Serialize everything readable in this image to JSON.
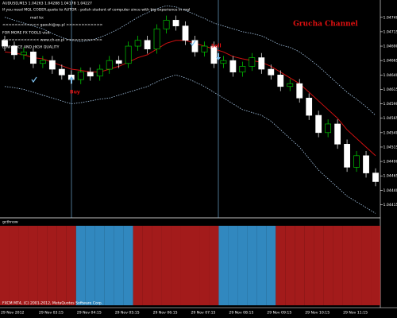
{
  "chart_data": {
    "type": "candlestick",
    "header": "AUDUSD,M15 1.04263 1.04288 1.04178 1.04227",
    "notes": [
      "If you need MQL CODER,quote to AUTOR - polish student of computer since with big experience in mql",
      "mail to:",
      "<<<<<<<<<<<< gaoshi@op.pl >>>>>>>>>>>>",
      "FOR MORE FX TOOLS visit",
      "<<<<<<<<<<<< www.ch-ex.pl >>>>>>>>>>>>",
      "LOW PRICE AND HIGH QUALITY"
    ],
    "title": "Grucha Channel",
    "buy_label": "Buy",
    "sell_label": "Sell",
    "indicator_name": "gcthnow",
    "footer": "FXCM MT4, (C) 2001-2012, MetaQuotes Software Corp.",
    "categories": [
      "29 Nov 2012",
      null,
      null,
      null,
      "29 Nov 03:15",
      null,
      null,
      null,
      "29 Nov 04:15",
      null,
      null,
      null,
      "29 Nov 05:15",
      null,
      null,
      null,
      "29 Nov 06:15",
      null,
      null,
      null,
      "29 Nov 07:15",
      null,
      null,
      null,
      "29 Nov 08:15",
      null,
      null,
      null,
      "29 Nov 09:15",
      null,
      null,
      null,
      "29 Nov 10:15",
      null,
      null,
      null,
      "29 Nov 11:15",
      null,
      null,
      null
    ],
    "open": [
      1.047,
      1.0469,
      1.04675,
      1.0468,
      1.0466,
      1.04665,
      1.0465,
      1.0464,
      1.04632,
      1.04645,
      1.04638,
      1.0465,
      1.04665,
      1.0466,
      1.0469,
      1.047,
      1.04685,
      1.0472,
      1.04735,
      1.04725,
      1.047,
      1.0468,
      1.0469,
      1.0466,
      1.04665,
      1.04645,
      1.04655,
      1.0467,
      1.0465,
      1.0464,
      1.0462,
      1.04625,
      1.046,
      1.0457,
      1.0454,
      1.04555,
      1.0452,
      1.0448,
      1.045,
      1.0447
    ],
    "high": [
      1.04708,
      1.04698,
      1.04688,
      1.04688,
      1.04673,
      1.04673,
      1.04658,
      1.04648,
      1.04653,
      1.04653,
      1.04658,
      1.04673,
      1.04673,
      1.04698,
      1.04708,
      1.04708,
      1.04728,
      1.04743,
      1.04743,
      1.04733,
      1.04708,
      1.04698,
      1.04698,
      1.04673,
      1.04673,
      1.04663,
      1.04678,
      1.04678,
      1.04658,
      1.04648,
      1.04633,
      1.04633,
      1.04608,
      1.04578,
      1.04563,
      1.04563,
      1.04528,
      1.04508,
      1.04508,
      1.04478
    ],
    "low": [
      1.04682,
      1.04667,
      1.04667,
      1.04652,
      1.04652,
      1.04642,
      1.04632,
      1.04624,
      1.04624,
      1.0463,
      1.0463,
      1.04642,
      1.04652,
      1.04652,
      1.04682,
      1.04677,
      1.04677,
      1.04712,
      1.04717,
      1.04692,
      1.04672,
      1.04672,
      1.04652,
      1.04652,
      1.04637,
      1.04637,
      1.04647,
      1.04642,
      1.04632,
      1.04612,
      1.04612,
      1.04592,
      1.04562,
      1.04532,
      1.04532,
      1.04512,
      1.04472,
      1.04472,
      1.04462,
      1.04447
    ],
    "close": [
      1.0469,
      1.04675,
      1.0468,
      1.0466,
      1.04665,
      1.0465,
      1.0464,
      1.04632,
      1.04645,
      1.04638,
      1.0465,
      1.04665,
      1.0466,
      1.0469,
      1.047,
      1.04685,
      1.0472,
      1.04735,
      1.04725,
      1.047,
      1.0468,
      1.0469,
      1.0466,
      1.04665,
      1.04645,
      1.04655,
      1.0467,
      1.0465,
      1.0464,
      1.0462,
      1.04625,
      1.046,
      1.0457,
      1.0454,
      1.04555,
      1.0452,
      1.0448,
      1.045,
      1.0447,
      1.04455
    ],
    "bands": {
      "upper": [
        1.0474,
        1.04735,
        1.0473,
        1.04725,
        1.0472,
        1.04712,
        1.04705,
        1.047,
        1.04698,
        1.047,
        1.04705,
        1.04712,
        1.0472,
        1.0473,
        1.0474,
        1.04748,
        1.04755,
        1.0476,
        1.04758,
        1.04752,
        1.04745,
        1.04738,
        1.0473,
        1.04725,
        1.0472,
        1.04715,
        1.04712,
        1.04708,
        1.047,
        1.04692,
        1.04688,
        1.0468,
        1.04668,
        1.04655,
        1.0464,
        1.04625,
        1.0461,
        1.04598,
        1.04585,
        1.0457
      ],
      "middle": [
        1.0468,
        1.04678,
        1.04675,
        1.0467,
        1.04668,
        1.04662,
        1.04656,
        1.0465,
        1.04648,
        1.04645,
        1.04645,
        1.0465,
        1.04655,
        1.04662,
        1.0467,
        1.04675,
        1.04685,
        1.04695,
        1.047,
        1.047,
        1.04695,
        1.0469,
        1.04685,
        1.0468,
        1.04672,
        1.04668,
        1.04665,
        1.04662,
        1.04655,
        1.04645,
        1.04635,
        1.04625,
        1.0461,
        1.04595,
        1.0458,
        1.04565,
        1.04545,
        1.0453,
        1.04515,
        1.045
      ],
      "lower": [
        1.0462,
        1.04618,
        1.04615,
        1.0461,
        1.04605,
        1.046,
        1.04595,
        1.0459,
        1.04592,
        1.04595,
        1.04598,
        1.046,
        1.04605,
        1.0461,
        1.04615,
        1.0462,
        1.04628,
        1.04635,
        1.0464,
        1.04635,
        1.04628,
        1.0462,
        1.0461,
        1.046,
        1.0459,
        1.0458,
        1.04575,
        1.0457,
        1.0456,
        1.04545,
        1.0453,
        1.04515,
        1.04495,
        1.04475,
        1.0446,
        1.04445,
        1.0443,
        1.0442,
        1.0441,
        1.044
      ]
    },
    "band_colors": {
      "upper": "#a8c8e8",
      "middle": "#d01010",
      "lower": "#a8c8e8"
    },
    "up_color": "#00e000",
    "down_color": "#ffffff",
    "indicator": [
      -1,
      -1,
      -1,
      -1,
      -1,
      -1,
      -1,
      -1,
      1,
      1,
      1,
      1,
      1,
      1,
      -1,
      -1,
      -1,
      -1,
      -1,
      -1,
      -1,
      -1,
      -1,
      1,
      1,
      1,
      1,
      1,
      1,
      -1,
      -1,
      -1,
      -1,
      -1,
      -1,
      -1,
      -1,
      -1,
      -1,
      -1
    ],
    "indicator_colors": {
      "up": "#3aa0e0",
      "down": "#c02020"
    },
    "ylim": [
      1.04395,
      1.0477
    ],
    "yticks": [
      {
        "value": 1.0474,
        "label": "1.04740"
      },
      {
        "value": 1.04715,
        "label": "1.04715"
      },
      {
        "value": 1.0469,
        "label": "1.04690"
      },
      {
        "value": 1.04665,
        "label": "1.04665"
      },
      {
        "value": 1.0464,
        "label": "1.04640"
      },
      {
        "value": 1.04615,
        "label": "1.04615"
      },
      {
        "value": 1.0459,
        "label": "1.04590"
      },
      {
        "value": 1.04565,
        "label": "1.04565"
      },
      {
        "value": 1.0454,
        "label": "1.04540"
      },
      {
        "value": 1.04515,
        "label": "1.04515"
      },
      {
        "value": 1.0449,
        "label": "1.04490"
      },
      {
        "value": 1.04465,
        "label": "1.04465"
      },
      {
        "value": 1.0444,
        "label": "1.04440"
      },
      {
        "value": 1.04415,
        "label": "1.04415"
      }
    ]
  }
}
